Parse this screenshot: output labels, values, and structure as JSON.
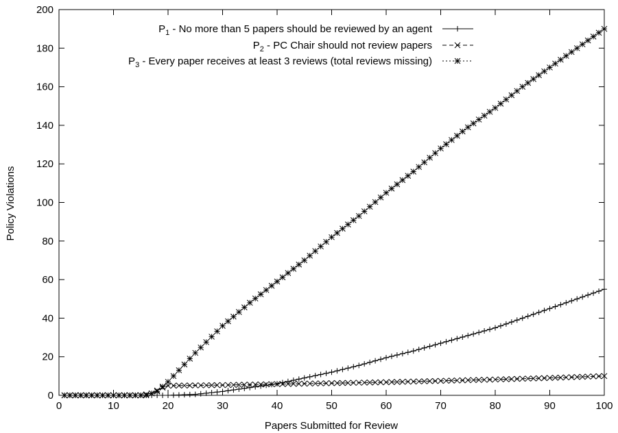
{
  "chart_data": {
    "type": "line",
    "xlabel": "Papers Submitted for Review",
    "ylabel": "Policy Violations",
    "xlim": [
      0,
      100
    ],
    "ylim": [
      0,
      200
    ],
    "x_ticks": [
      0,
      10,
      20,
      30,
      40,
      50,
      60,
      70,
      80,
      90,
      100
    ],
    "y_ticks": [
      0,
      20,
      40,
      60,
      80,
      100,
      120,
      140,
      160,
      180,
      200
    ],
    "grid": false,
    "legend_position": "top-right",
    "series": [
      {
        "name_prefix": "P",
        "name_sub": "1",
        "name_rest": " - No more than 5 papers should be reviewed by an agent",
        "line_style": "solid",
        "marker": "plus",
        "points": [
          [
            1,
            0
          ],
          [
            10,
            0
          ],
          [
            20,
            0
          ],
          [
            25,
            0.5
          ],
          [
            30,
            2
          ],
          [
            35,
            4
          ],
          [
            40,
            6
          ],
          [
            45,
            9
          ],
          [
            50,
            12
          ],
          [
            55,
            15.5
          ],
          [
            60,
            19.5
          ],
          [
            65,
            23
          ],
          [
            70,
            27
          ],
          [
            75,
            31
          ],
          [
            80,
            35
          ],
          [
            85,
            40
          ],
          [
            90,
            45
          ],
          [
            95,
            50
          ],
          [
            100,
            55
          ]
        ]
      },
      {
        "name_prefix": "P",
        "name_sub": "2",
        "name_rest": " - PC Chair should not review papers",
        "line_style": "dashed",
        "marker": "cross",
        "points": [
          [
            1,
            0
          ],
          [
            10,
            0
          ],
          [
            15,
            0
          ],
          [
            17,
            1
          ],
          [
            18,
            2.5
          ],
          [
            19,
            4
          ],
          [
            20,
            5
          ],
          [
            30,
            5.3
          ],
          [
            40,
            5.8
          ],
          [
            50,
            6.3
          ],
          [
            60,
            6.8
          ],
          [
            70,
            7.5
          ],
          [
            80,
            8.2
          ],
          [
            90,
            9
          ],
          [
            100,
            10
          ]
        ]
      },
      {
        "name_prefix": "P",
        "name_sub": "3",
        "name_rest": " - Every paper receives at least 3 reviews (total reviews missing)",
        "line_style": "dotted",
        "marker": "star",
        "points": [
          [
            1,
            0
          ],
          [
            10,
            0
          ],
          [
            16,
            0
          ],
          [
            18,
            2
          ],
          [
            20,
            7
          ],
          [
            25,
            22
          ],
          [
            30,
            36
          ],
          [
            35,
            48
          ],
          [
            40,
            59
          ],
          [
            45,
            70
          ],
          [
            50,
            82
          ],
          [
            55,
            93
          ],
          [
            60,
            105
          ],
          [
            65,
            116
          ],
          [
            70,
            128
          ],
          [
            75,
            139
          ],
          [
            80,
            149
          ],
          [
            85,
            160
          ],
          [
            90,
            170
          ],
          [
            95,
            180
          ],
          [
            100,
            190
          ]
        ]
      }
    ]
  }
}
